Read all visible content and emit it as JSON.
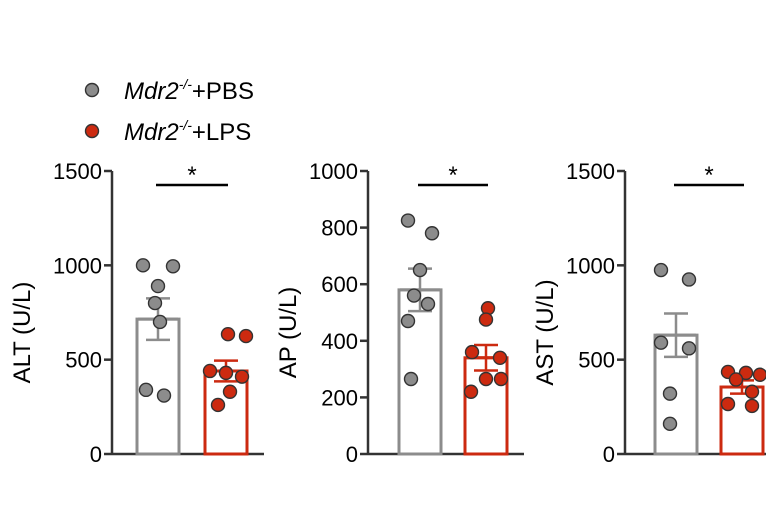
{
  "chart_data": [
    {
      "type": "bar",
      "ylabel": "ALT (U/L)",
      "ylim": [
        0,
        1500
      ],
      "yticks": [
        0,
        500,
        1000,
        1500
      ],
      "significance": "*",
      "series": [
        {
          "name": "Mdr2-/-+PBS",
          "color": "#8c8c8c",
          "mean": 715,
          "sem": 110,
          "points": [
            1000,
            995,
            890,
            800,
            700,
            340,
            310
          ]
        },
        {
          "name": "Mdr2-/-+LPS",
          "color": "#cc2a10",
          "mean": 440,
          "sem": 55,
          "points": [
            635,
            625,
            440,
            430,
            410,
            330,
            260
          ]
        }
      ]
    },
    {
      "type": "bar",
      "ylabel": "AP (U/L)",
      "ylim": [
        0,
        1000
      ],
      "yticks": [
        0,
        200,
        400,
        600,
        800,
        1000
      ],
      "significance": "*",
      "series": [
        {
          "name": "Mdr2-/-+PBS",
          "color": "#8c8c8c",
          "mean": 580,
          "sem": 75,
          "points": [
            825,
            780,
            650,
            560,
            530,
            470,
            265
          ]
        },
        {
          "name": "Mdr2-/-+LPS",
          "color": "#cc2a10",
          "mean": 340,
          "sem": 45,
          "points": [
            515,
            475,
            360,
            340,
            265,
            265,
            220
          ]
        }
      ]
    },
    {
      "type": "bar",
      "ylabel": "AST (U/L)",
      "ylim": [
        0,
        1500
      ],
      "yticks": [
        0,
        500,
        1000,
        1500
      ],
      "significance": "*",
      "series": [
        {
          "name": "Mdr2-/-+PBS",
          "color": "#8c8c8c",
          "mean": 630,
          "sem": 115,
          "points": [
            975,
            925,
            590,
            560,
            320,
            160
          ]
        },
        {
          "name": "Mdr2-/-+LPS",
          "color": "#cc2a10",
          "mean": 355,
          "sem": 35,
          "points": [
            435,
            430,
            420,
            395,
            330,
            265,
            255
          ]
        }
      ]
    }
  ],
  "legend": [
    {
      "base": "Mdr2",
      "sup": "-/-",
      "suffix": "+PBS",
      "color": "#8c8c8c"
    },
    {
      "base": "Mdr2",
      "sup": "-/-",
      "suffix": "+LPS",
      "color": "#cc2a10"
    }
  ]
}
